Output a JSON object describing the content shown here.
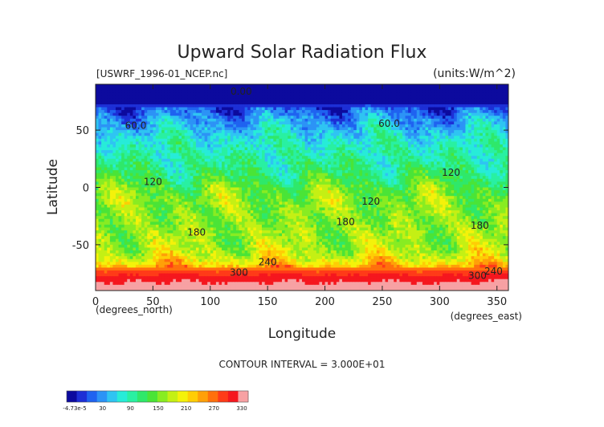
{
  "chart_data": {
    "type": "heatmap",
    "title": "Upward Solar Radiation Flux",
    "source_label": "[USWRF_1996-01_NCEP.nc]",
    "units_label": "(units:W/m^2)",
    "xlabel": "Longitude",
    "ylabel": "Latitude",
    "x_unit_label": "(degrees_east)",
    "y_unit_label": "(degrees_north)",
    "xlim": [
      0,
      360
    ],
    "ylim": [
      -90,
      90
    ],
    "x_ticks": [
      {
        "value": 0,
        "label": "0"
      },
      {
        "value": 50,
        "label": "50"
      },
      {
        "value": 100,
        "label": "100"
      },
      {
        "value": 150,
        "label": "150"
      },
      {
        "value": 200,
        "label": "200"
      },
      {
        "value": 250,
        "label": "250"
      },
      {
        "value": 300,
        "label": "300"
      },
      {
        "value": 350,
        "label": "350"
      }
    ],
    "y_ticks": [
      {
        "value": 50,
        "label": "50"
      },
      {
        "value": 0,
        "label": "0"
      },
      {
        "value": -50,
        "label": "-50"
      }
    ],
    "contour_interval_text": "CONTOUR INTERVAL = 3.000E+01",
    "colorbar": {
      "tick_labels": [
        "-4.73e-5",
        "30",
        "90",
        "150",
        "210",
        "270",
        "330"
      ],
      "colors": [
        "#0c0a9e",
        "#1d2fd6",
        "#1f63f0",
        "#2c93f6",
        "#2fc4f2",
        "#27ecd8",
        "#29f0a2",
        "#2fe86a",
        "#4ae437",
        "#88ec22",
        "#c4f014",
        "#f4f20a",
        "#ffcd05",
        "#ffa008",
        "#ff700c",
        "#ff3b18",
        "#f5171e",
        "#f7a1a3"
      ]
    },
    "contour_labels": [
      {
        "text": "0.00",
        "lon": 127,
        "lat": 81
      },
      {
        "text": "60.0",
        "lon": 35,
        "lat": 51
      },
      {
        "text": "60.0",
        "lon": 256,
        "lat": 53
      },
      {
        "text": "120",
        "lon": 50,
        "lat": 2
      },
      {
        "text": "120",
        "lon": 310,
        "lat": 10
      },
      {
        "text": "120",
        "lon": 240,
        "lat": -15
      },
      {
        "text": "180",
        "lon": 88,
        "lat": -42
      },
      {
        "text": "180",
        "lon": 218,
        "lat": -33
      },
      {
        "text": "180",
        "lon": 335,
        "lat": -36
      },
      {
        "text": "240",
        "lon": 150,
        "lat": -68
      },
      {
        "text": "240",
        "lon": 347,
        "lat": -76
      },
      {
        "text": "300",
        "lon": 125,
        "lat": -77
      },
      {
        "text": "300",
        "lon": 333,
        "lat": -80
      }
    ],
    "field_lat_profile": [
      {
        "lat": 90,
        "value": 0
      },
      {
        "lat": 75,
        "value": 0
      },
      {
        "lat": 70,
        "value": 25
      },
      {
        "lat": 60,
        "value": 55
      },
      {
        "lat": 50,
        "value": 80
      },
      {
        "lat": 40,
        "value": 100
      },
      {
        "lat": 30,
        "value": 110
      },
      {
        "lat": 20,
        "value": 120
      },
      {
        "lat": 10,
        "value": 135
      },
      {
        "lat": 0,
        "value": 160
      },
      {
        "lat": -10,
        "value": 175
      },
      {
        "lat": -20,
        "value": 175
      },
      {
        "lat": -30,
        "value": 175
      },
      {
        "lat": -40,
        "value": 180
      },
      {
        "lat": -50,
        "value": 185
      },
      {
        "lat": -60,
        "value": 200
      },
      {
        "lat": -68,
        "value": 240
      },
      {
        "lat": -72,
        "value": 280
      },
      {
        "lat": -78,
        "value": 315
      },
      {
        "lat": -90,
        "value": 340
      }
    ]
  }
}
